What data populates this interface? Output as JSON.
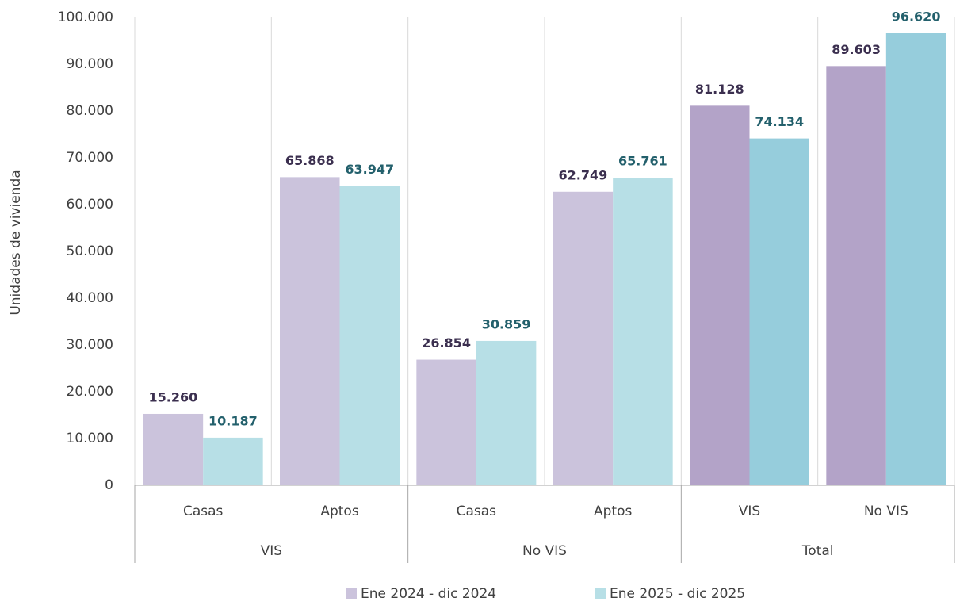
{
  "chart_data": {
    "type": "bar",
    "ylabel": "Unidades de vivienda",
    "categories": [
      "Casas",
      "Aptos",
      "Casas",
      "Aptos",
      "VIS",
      "No VIS"
    ],
    "group_categories": [
      "VIS",
      "VIS",
      "No VIS",
      "No VIS",
      "Total",
      "Total"
    ],
    "series": [
      {
        "name": "Ene 2024 - dic 2024",
        "color": "#cbc3dc",
        "colors": [
          "#cbc3dc",
          "#cbc3dc",
          "#cbc3dc",
          "#cbc3dc",
          "#b3a3c8",
          "#b3a3c8"
        ],
        "label_color": "#3b2f4f",
        "values": [
          15260,
          65868,
          26854,
          62749,
          81128,
          89603
        ],
        "value_labels": [
          "15.260",
          "65.868",
          "26.854",
          "62.749",
          "81.128",
          "89.603"
        ]
      },
      {
        "name": "Ene 2025 - dic 2025",
        "color": "#b7dfe6",
        "colors": [
          "#b7dfe6",
          "#b7dfe6",
          "#b7dfe6",
          "#b7dfe6",
          "#96cddc",
          "#96cddc"
        ],
        "label_color": "#23606c",
        "values": [
          10187,
          63947,
          30859,
          65761,
          74134,
          96620
        ],
        "value_labels": [
          "10.187",
          "63.947",
          "30.859",
          "65.761",
          "74.134",
          "96.620"
        ]
      }
    ],
    "ylim": [
      0,
      100000
    ],
    "yticks": [
      0,
      {
        "value": 10000,
        "label": "10.000"
      },
      {
        "value": 20000,
        "label": "20.000"
      },
      {
        "value": 30000,
        "label": "30.000"
      },
      {
        "value": 40000,
        "label": "40.000"
      },
      {
        "value": 50000,
        "label": "50.000"
      },
      {
        "value": 60000,
        "label": "60.000"
      },
      {
        "value": 70000,
        "label": "70.000"
      },
      {
        "value": 80000,
        "label": "80.000"
      },
      {
        "value": 90000,
        "label": "90.000"
      },
      {
        "value": 100000,
        "label": "100.000"
      }
    ],
    "legend": "bottom"
  }
}
